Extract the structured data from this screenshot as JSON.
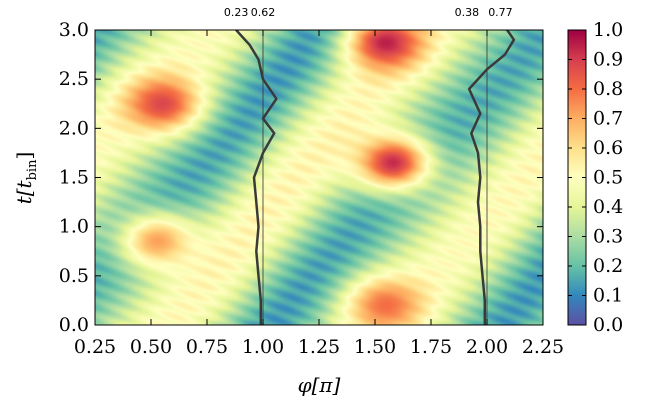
{
  "chart_data": {
    "type": "heatmap",
    "xlabel": "φ[π]",
    "ylabel_main": "t[t",
    "ylabel_sub": "bin",
    "ylabel_close": "]",
    "xlim": [
      0.25,
      2.25
    ],
    "ylim": [
      0.0,
      3.0
    ],
    "xticks": [
      "0.25",
      "0.50",
      "0.75",
      "1.00",
      "1.25",
      "1.50",
      "1.75",
      "2.00",
      "2.25"
    ],
    "yticks": [
      "0.0",
      "0.5",
      "1.0",
      "1.5",
      "2.0",
      "2.5",
      "3.0"
    ],
    "colorbar": {
      "range": [
        0.0,
        1.0
      ],
      "ticks": [
        "0.0",
        "0.1",
        "0.2",
        "0.3",
        "0.4",
        "0.5",
        "0.6",
        "0.7",
        "0.8",
        "0.9",
        "1.0"
      ],
      "colormap": "spectral_r",
      "stops": [
        "#5e4fa2",
        "#3288bd",
        "#66c2a5",
        "#abdda4",
        "#e6f598",
        "#ffffbf",
        "#fee08b",
        "#fdae61",
        "#f46d43",
        "#d53e4f",
        "#9e0142"
      ]
    },
    "hotspots": [
      {
        "phi": 0.55,
        "t": 2.25,
        "peak": 0.88
      },
      {
        "phi": 1.58,
        "t": 1.65,
        "peak": 0.93
      },
      {
        "phi": 1.55,
        "t": 2.87,
        "peak": 0.95
      },
      {
        "phi": 0.53,
        "t": 0.85,
        "peak": 0.72
      },
      {
        "phi": 1.55,
        "t": 0.2,
        "peak": 0.8
      }
    ],
    "reference_lines_phi": [
      1.0,
      2.0
    ],
    "top_annotations": [
      {
        "phi": 0.88,
        "text": "0.23"
      },
      {
        "phi": 1.0,
        "text": "0.62"
      },
      {
        "phi": 1.91,
        "text": "0.38"
      },
      {
        "phi": 2.06,
        "text": "0.77"
      }
    ],
    "profile_curves": [
      {
        "name": "profile near φ=1",
        "points": [
          [
            0.99,
            0.0
          ],
          [
            0.99,
            0.25
          ],
          [
            0.98,
            0.5
          ],
          [
            0.97,
            0.75
          ],
          [
            0.98,
            1.0
          ],
          [
            0.97,
            1.25
          ],
          [
            0.96,
            1.5
          ],
          [
            1.0,
            1.75
          ],
          [
            1.05,
            1.95
          ],
          [
            1.0,
            2.1
          ],
          [
            1.06,
            2.3
          ],
          [
            1.0,
            2.5
          ],
          [
            0.98,
            2.7
          ],
          [
            0.94,
            2.85
          ],
          [
            0.88,
            3.0
          ]
        ]
      },
      {
        "name": "profile near φ=2",
        "points": [
          [
            1.99,
            0.0
          ],
          [
            1.99,
            0.25
          ],
          [
            1.98,
            0.5
          ],
          [
            1.97,
            0.75
          ],
          [
            1.97,
            1.0
          ],
          [
            1.96,
            1.25
          ],
          [
            1.97,
            1.5
          ],
          [
            1.96,
            1.75
          ],
          [
            1.93,
            1.95
          ],
          [
            1.97,
            2.15
          ],
          [
            1.92,
            2.4
          ],
          [
            2.0,
            2.6
          ],
          [
            2.08,
            2.75
          ],
          [
            2.12,
            2.9
          ],
          [
            2.09,
            3.0
          ]
        ]
      }
    ]
  }
}
